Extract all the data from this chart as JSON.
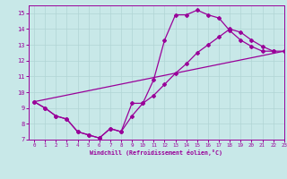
{
  "title": "Windchill (Refroidissement éolien,°C)",
  "background_color": "#c8e8e8",
  "grid_color": "#b0d4d4",
  "line_color": "#990099",
  "xlim": [
    -0.5,
    23
  ],
  "ylim": [
    7,
    15.5
  ],
  "xticks": [
    0,
    1,
    2,
    3,
    4,
    5,
    6,
    7,
    8,
    9,
    10,
    11,
    12,
    13,
    14,
    15,
    16,
    17,
    18,
    19,
    20,
    21,
    22,
    23
  ],
  "yticks": [
    7,
    8,
    9,
    10,
    11,
    12,
    13,
    14,
    15
  ],
  "series1_x": [
    0,
    1,
    2,
    3,
    4,
    5,
    6,
    7,
    8,
    9,
    10,
    11,
    12,
    13,
    14,
    15,
    16,
    17,
    18,
    19,
    20,
    21,
    22
  ],
  "series1_y": [
    9.4,
    9.0,
    8.5,
    8.3,
    7.5,
    7.3,
    7.1,
    7.7,
    7.5,
    9.3,
    9.3,
    10.8,
    13.3,
    14.9,
    14.9,
    15.2,
    14.9,
    14.7,
    13.9,
    13.3,
    12.9,
    12.6,
    12.6
  ],
  "series2_x": [
    0,
    1,
    2,
    3,
    4,
    5,
    6,
    7,
    8,
    9,
    10,
    11,
    12,
    13,
    14,
    15,
    16,
    17,
    18,
    19,
    20,
    21,
    22,
    23
  ],
  "series2_y": [
    9.4,
    9.0,
    8.5,
    8.3,
    7.5,
    7.3,
    7.1,
    7.7,
    7.5,
    8.5,
    9.3,
    9.8,
    10.5,
    11.2,
    11.8,
    12.5,
    13.0,
    13.5,
    14.0,
    13.8,
    13.3,
    12.9,
    12.6,
    12.6
  ],
  "series3_x": [
    0,
    23
  ],
  "series3_y": [
    9.4,
    12.6
  ],
  "figsize": [
    3.2,
    2.0
  ],
  "dpi": 100
}
